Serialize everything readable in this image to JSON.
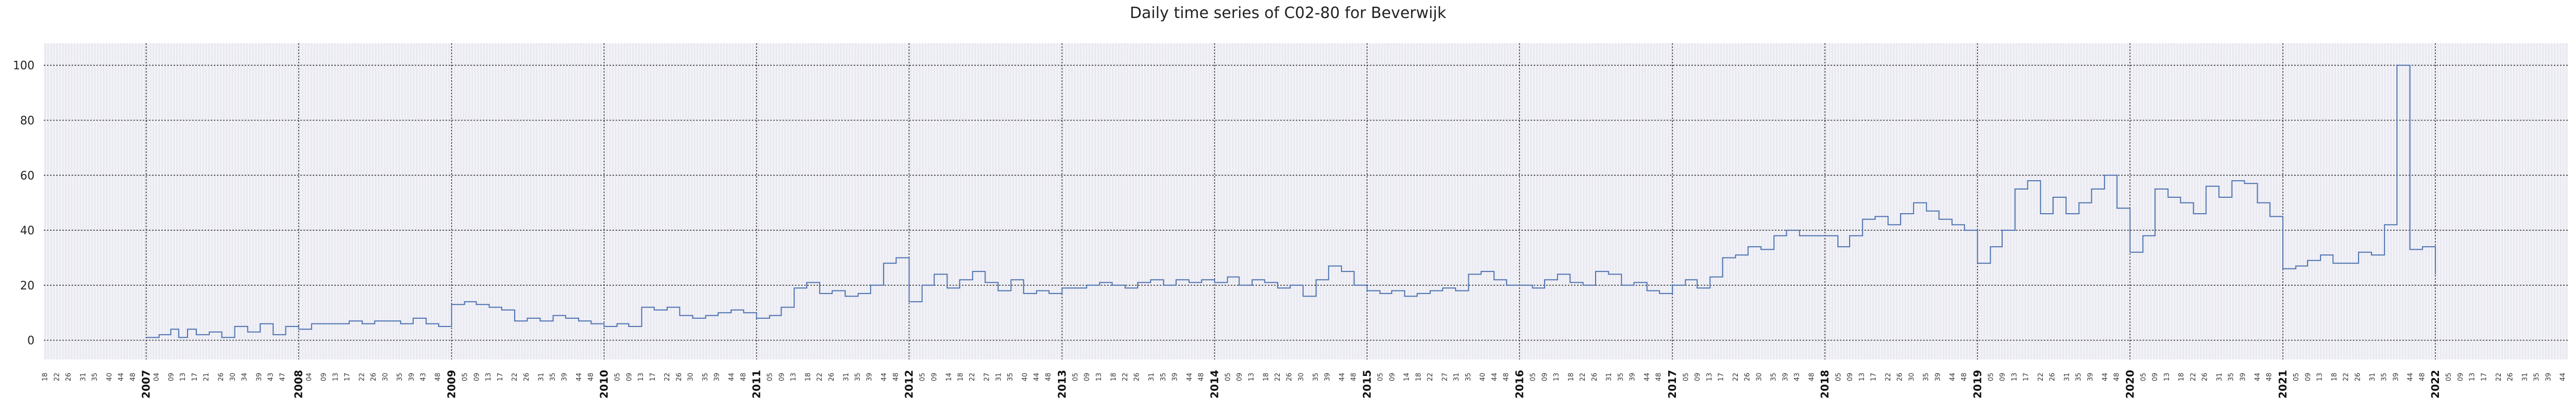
{
  "chart_data": {
    "type": "line",
    "title": "Daily time series of C02-80 for Beverwijk",
    "xlabel": "",
    "ylabel": "",
    "ylim": [
      -7,
      108
    ],
    "yticks": [
      0,
      20,
      40,
      60,
      80,
      100
    ],
    "xlim": [
      "2006-05-01",
      "2022-11-15"
    ],
    "grid": true,
    "colors": {
      "line": "#4c72b0",
      "background": "#eaeaf2",
      "major_grid": "#333333",
      "minor_grid": "#ffffff"
    },
    "year_ticks": [
      "2007",
      "2008",
      "2009",
      "2010",
      "2011",
      "2012",
      "2013",
      "2014",
      "2015",
      "2016",
      "2017",
      "2018",
      "2019",
      "2020",
      "2021",
      "2022"
    ],
    "week_ticks": {
      "2006": [
        "18",
        "22",
        "26",
        "31",
        "35",
        "40",
        "44",
        "48"
      ],
      "2007": [
        "04",
        "09",
        "13",
        "17",
        "21",
        "26",
        "30",
        "34",
        "39",
        "43",
        "47"
      ],
      "2008": [
        "04",
        "09",
        "13",
        "17",
        "22",
        "26",
        "30",
        "35",
        "39",
        "43",
        "48"
      ],
      "2009": [
        "05",
        "09",
        "13",
        "17",
        "22",
        "26",
        "31",
        "35",
        "39",
        "44",
        "48"
      ],
      "2010": [
        "05",
        "09",
        "13",
        "17",
        "22",
        "26",
        "30",
        "35",
        "39",
        "44",
        "48"
      ],
      "2011": [
        "05",
        "09",
        "13",
        "18",
        "22",
        "26",
        "31",
        "35",
        "39",
        "44",
        "48"
      ],
      "2012": [
        "05",
        "09",
        "14",
        "18",
        "22",
        "27",
        "31",
        "35",
        "40",
        "44",
        "48"
      ],
      "2013": [
        "05",
        "09",
        "13",
        "18",
        "22",
        "26",
        "31",
        "35",
        "39",
        "44",
        "48"
      ],
      "2014": [
        "05",
        "09",
        "13",
        "18",
        "22",
        "26",
        "30",
        "35",
        "39",
        "44",
        "48"
      ],
      "2015": [
        "05",
        "09",
        "14",
        "18",
        "22",
        "27",
        "31",
        "35",
        "40",
        "44",
        "48"
      ],
      "2016": [
        "05",
        "09",
        "13",
        "18",
        "22",
        "26",
        "31",
        "35",
        "39",
        "44",
        "48"
      ],
      "2017": [
        "05",
        "09",
        "13",
        "17",
        "22",
        "26",
        "30",
        "35",
        "39",
        "43",
        "48"
      ],
      "2018": [
        "05",
        "09",
        "13",
        "17",
        "22",
        "26",
        "30",
        "35",
        "39",
        "44",
        "48"
      ],
      "2019": [
        "05",
        "09",
        "13",
        "17",
        "22",
        "26",
        "31",
        "35",
        "39",
        "44",
        "48"
      ],
      "2020": [
        "05",
        "09",
        "13",
        "18",
        "22",
        "26",
        "31",
        "35",
        "39",
        "44",
        "48"
      ],
      "2021": [
        "05",
        "09",
        "13",
        "18",
        "22",
        "26",
        "31",
        "35",
        "39",
        "44",
        "48"
      ],
      "2022": [
        "05",
        "09",
        "13",
        "17",
        "22",
        "26",
        "31",
        "35",
        "39",
        "44"
      ]
    },
    "series": [
      {
        "points": [
          [
            "2007-01-01",
            1
          ],
          [
            "2007-02-01",
            2
          ],
          [
            "2007-03-01",
            4
          ],
          [
            "2007-03-20",
            1
          ],
          [
            "2007-04-10",
            4
          ],
          [
            "2007-05-01",
            2
          ],
          [
            "2007-06-01",
            3
          ],
          [
            "2007-07-01",
            1
          ],
          [
            "2007-08-01",
            5
          ],
          [
            "2007-09-01",
            3
          ],
          [
            "2007-10-01",
            6
          ],
          [
            "2007-11-01",
            2
          ],
          [
            "2007-12-01",
            5
          ],
          [
            "2008-01-01",
            4
          ],
          [
            "2008-02-01",
            6
          ],
          [
            "2008-03-01",
            6
          ],
          [
            "2008-04-01",
            6
          ],
          [
            "2008-05-01",
            7
          ],
          [
            "2008-06-01",
            6
          ],
          [
            "2008-07-01",
            7
          ],
          [
            "2008-08-01",
            7
          ],
          [
            "2008-09-01",
            6
          ],
          [
            "2008-10-01",
            8
          ],
          [
            "2008-11-01",
            6
          ],
          [
            "2008-12-01",
            5
          ],
          [
            "2009-01-01",
            13
          ],
          [
            "2009-02-01",
            14
          ],
          [
            "2009-03-01",
            13
          ],
          [
            "2009-04-01",
            12
          ],
          [
            "2009-05-01",
            11
          ],
          [
            "2009-06-01",
            7
          ],
          [
            "2009-07-01",
            8
          ],
          [
            "2009-08-01",
            7
          ],
          [
            "2009-09-01",
            9
          ],
          [
            "2009-10-01",
            8
          ],
          [
            "2009-11-01",
            7
          ],
          [
            "2009-12-01",
            6
          ],
          [
            "2010-01-01",
            5
          ],
          [
            "2010-02-01",
            6
          ],
          [
            "2010-03-01",
            5
          ],
          [
            "2010-04-01",
            12
          ],
          [
            "2010-05-01",
            11
          ],
          [
            "2010-06-01",
            12
          ],
          [
            "2010-07-01",
            9
          ],
          [
            "2010-08-01",
            8
          ],
          [
            "2010-09-01",
            9
          ],
          [
            "2010-10-01",
            10
          ],
          [
            "2010-11-01",
            11
          ],
          [
            "2010-12-01",
            10
          ],
          [
            "2011-01-01",
            8
          ],
          [
            "2011-02-01",
            9
          ],
          [
            "2011-03-01",
            12
          ],
          [
            "2011-04-01",
            19
          ],
          [
            "2011-05-01",
            21
          ],
          [
            "2011-06-01",
            17
          ],
          [
            "2011-07-01",
            18
          ],
          [
            "2011-08-01",
            16
          ],
          [
            "2011-09-01",
            17
          ],
          [
            "2011-10-01",
            20
          ],
          [
            "2011-11-01",
            28
          ],
          [
            "2011-12-01",
            30
          ],
          [
            "2012-01-01",
            14
          ],
          [
            "2012-02-01",
            20
          ],
          [
            "2012-03-01",
            24
          ],
          [
            "2012-04-01",
            19
          ],
          [
            "2012-05-01",
            22
          ],
          [
            "2012-06-01",
            25
          ],
          [
            "2012-07-01",
            21
          ],
          [
            "2012-08-01",
            18
          ],
          [
            "2012-09-01",
            22
          ],
          [
            "2012-10-01",
            17
          ],
          [
            "2012-11-01",
            18
          ],
          [
            "2012-12-01",
            17
          ],
          [
            "2013-01-01",
            19
          ],
          [
            "2013-02-01",
            19
          ],
          [
            "2013-03-01",
            20
          ],
          [
            "2013-04-01",
            21
          ],
          [
            "2013-05-01",
            20
          ],
          [
            "2013-06-01",
            19
          ],
          [
            "2013-07-01",
            21
          ],
          [
            "2013-08-01",
            22
          ],
          [
            "2013-09-01",
            20
          ],
          [
            "2013-10-01",
            22
          ],
          [
            "2013-11-01",
            21
          ],
          [
            "2013-12-01",
            22
          ],
          [
            "2014-01-01",
            21
          ],
          [
            "2014-02-01",
            23
          ],
          [
            "2014-03-01",
            20
          ],
          [
            "2014-04-01",
            22
          ],
          [
            "2014-05-01",
            21
          ],
          [
            "2014-06-01",
            19
          ],
          [
            "2014-07-01",
            20
          ],
          [
            "2014-08-01",
            16
          ],
          [
            "2014-09-01",
            22
          ],
          [
            "2014-10-01",
            27
          ],
          [
            "2014-11-01",
            25
          ],
          [
            "2014-12-01",
            20
          ],
          [
            "2015-01-01",
            18
          ],
          [
            "2015-02-01",
            17
          ],
          [
            "2015-03-01",
            18
          ],
          [
            "2015-04-01",
            16
          ],
          [
            "2015-05-01",
            17
          ],
          [
            "2015-06-01",
            18
          ],
          [
            "2015-07-01",
            19
          ],
          [
            "2015-08-01",
            18
          ],
          [
            "2015-09-01",
            24
          ],
          [
            "2015-10-01",
            25
          ],
          [
            "2015-11-01",
            22
          ],
          [
            "2015-12-01",
            20
          ],
          [
            "2016-01-01",
            20
          ],
          [
            "2016-02-01",
            19
          ],
          [
            "2016-03-01",
            22
          ],
          [
            "2016-04-01",
            24
          ],
          [
            "2016-05-01",
            21
          ],
          [
            "2016-06-01",
            20
          ],
          [
            "2016-07-01",
            25
          ],
          [
            "2016-08-01",
            24
          ],
          [
            "2016-09-01",
            20
          ],
          [
            "2016-10-01",
            21
          ],
          [
            "2016-11-01",
            18
          ],
          [
            "2016-12-01",
            17
          ],
          [
            "2017-01-01",
            20
          ],
          [
            "2017-02-01",
            22
          ],
          [
            "2017-03-01",
            19
          ],
          [
            "2017-04-01",
            23
          ],
          [
            "2017-05-01",
            30
          ],
          [
            "2017-06-01",
            31
          ],
          [
            "2017-07-01",
            34
          ],
          [
            "2017-08-01",
            33
          ],
          [
            "2017-09-01",
            38
          ],
          [
            "2017-10-01",
            40
          ],
          [
            "2017-11-01",
            38
          ],
          [
            "2017-12-01",
            38
          ],
          [
            "2018-01-01",
            38
          ],
          [
            "2018-02-01",
            34
          ],
          [
            "2018-03-01",
            38
          ],
          [
            "2018-04-01",
            44
          ],
          [
            "2018-05-01",
            45
          ],
          [
            "2018-06-01",
            42
          ],
          [
            "2018-07-01",
            46
          ],
          [
            "2018-08-01",
            50
          ],
          [
            "2018-09-01",
            47
          ],
          [
            "2018-10-01",
            44
          ],
          [
            "2018-11-01",
            42
          ],
          [
            "2018-12-01",
            40
          ],
          [
            "2019-01-01",
            28
          ],
          [
            "2019-02-01",
            34
          ],
          [
            "2019-03-01",
            40
          ],
          [
            "2019-04-01",
            55
          ],
          [
            "2019-05-01",
            58
          ],
          [
            "2019-06-01",
            46
          ],
          [
            "2019-07-01",
            52
          ],
          [
            "2019-08-01",
            46
          ],
          [
            "2019-09-01",
            50
          ],
          [
            "2019-10-01",
            55
          ],
          [
            "2019-11-01",
            60
          ],
          [
            "2019-12-01",
            48
          ],
          [
            "2020-01-01",
            32
          ],
          [
            "2020-02-01",
            38
          ],
          [
            "2020-03-01",
            55
          ],
          [
            "2020-04-01",
            52
          ],
          [
            "2020-05-01",
            50
          ],
          [
            "2020-06-01",
            46
          ],
          [
            "2020-07-01",
            56
          ],
          [
            "2020-08-01",
            52
          ],
          [
            "2020-09-01",
            58
          ],
          [
            "2020-10-01",
            57
          ],
          [
            "2020-11-01",
            50
          ],
          [
            "2020-12-01",
            45
          ],
          [
            "2021-01-01",
            26
          ],
          [
            "2021-02-01",
            27
          ],
          [
            "2021-03-01",
            29
          ],
          [
            "2021-04-01",
            31
          ],
          [
            "2021-05-01",
            28
          ],
          [
            "2021-06-01",
            28
          ],
          [
            "2021-07-01",
            32
          ],
          [
            "2021-08-01",
            31
          ],
          [
            "2021-09-01",
            42
          ],
          [
            "2021-10-01",
            100
          ],
          [
            "2021-11-01",
            33
          ],
          [
            "2021-12-01",
            34
          ],
          [
            "2022-01-01",
            24
          ]
        ]
      }
    ]
  }
}
